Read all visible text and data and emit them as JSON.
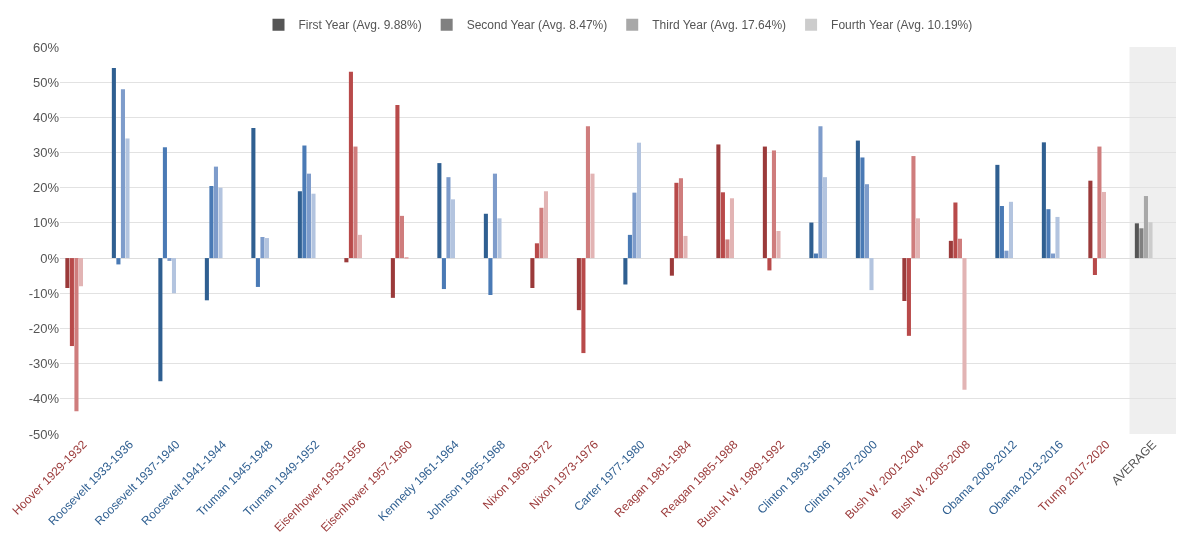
{
  "chart_data": {
    "type": "bar",
    "categories": [
      "Hoover 1929-1932",
      "Roosevelt 1933-1936",
      "Roosevelt 1937-1940",
      "Roosevelt 1941-1944",
      "Truman 1945-1948",
      "Truman 1949-1952",
      "Eisenhower 1953-1956",
      "Eisenhower 1957-1960",
      "Kennedy 1961-1964",
      "Johnson 1965-1968",
      "Nixon 1969-1972",
      "Nixon 1973-1976",
      "Carter 1977-1980",
      "Reagan 1981-1984",
      "Reagan 1985-1988",
      "Bush H.W. 1989-1992",
      "Clinton 1993-1996",
      "Clinton 1997-2000",
      "Bush W. 2001-2004",
      "Bush W. 2005-2008",
      "Obama 2009-2012",
      "Obama 2013-2016",
      "Trump 2017-2020",
      "AVERAGE"
    ],
    "series": [
      {
        "name": "First Year (Avg. 9.88%)",
        "color": "#555555",
        "values": [
          -8.5,
          54,
          -35,
          -12,
          37,
          19,
          -1.2,
          -11.3,
          27,
          12.6,
          -8.5,
          -14.8,
          -7.5,
          -5,
          32.3,
          31.7,
          10.1,
          33.4,
          -12.2,
          4.9,
          26.5,
          32.9,
          22,
          9.88
        ],
        "colors": [
          "#9b3a3a",
          "#2f5f91",
          "#2f5f91",
          "#2f5f91",
          "#2f5f91",
          "#2f5f91",
          "#9b3a3a",
          "#9b3a3a",
          "#2f5f91",
          "#2f5f91",
          "#9b3a3a",
          "#9b3a3a",
          "#2f5f91",
          "#9b3a3a",
          "#9b3a3a",
          "#9b3a3a",
          "#2f5f91",
          "#2f5f91",
          "#9b3a3a",
          "#9b3a3a",
          "#2f5f91",
          "#2f5f91",
          "#9b3a3a",
          "#555555"
        ]
      },
      {
        "name": "Second Year (Avg. 8.47%)",
        "color": "#808080",
        "values": [
          -25,
          -1.8,
          31.5,
          20.5,
          -8.2,
          32,
          53,
          43.5,
          -8.8,
          -10.5,
          4.2,
          -27,
          6.6,
          21.4,
          18.7,
          -3.5,
          1.3,
          28.6,
          -22.1,
          15.8,
          14.8,
          13.9,
          -4.8,
          8.47
        ],
        "colors": [
          "#b84a4a",
          "#4a7ab5",
          "#4a7ab5",
          "#4a7ab5",
          "#4a7ab5",
          "#4a7ab5",
          "#b84a4a",
          "#b84a4a",
          "#4a7ab5",
          "#4a7ab5",
          "#b84a4a",
          "#b84a4a",
          "#4a7ab5",
          "#b84a4a",
          "#b84a4a",
          "#b84a4a",
          "#4a7ab5",
          "#4a7ab5",
          "#b84a4a",
          "#b84a4a",
          "#4a7ab5",
          "#4a7ab5",
          "#b84a4a",
          "#808080"
        ]
      },
      {
        "name": "Third Year (Avg. 17.64%)",
        "color": "#a8a8a8",
        "values": [
          -43.5,
          48,
          -0.8,
          26,
          6,
          24,
          31.7,
          12,
          23,
          24,
          14.3,
          37.5,
          18.6,
          22.7,
          5.3,
          30.6,
          37.5,
          21,
          29,
          5.5,
          2.1,
          1.3,
          31.7,
          17.64
        ],
        "colors": [
          "#cf7d7d",
          "#7e9ccb",
          "#7e9ccb",
          "#7e9ccb",
          "#7e9ccb",
          "#7e9ccb",
          "#cf7d7d",
          "#cf7d7d",
          "#7e9ccb",
          "#7e9ccb",
          "#cf7d7d",
          "#cf7d7d",
          "#7e9ccb",
          "#cf7d7d",
          "#cf7d7d",
          "#cf7d7d",
          "#7e9ccb",
          "#7e9ccb",
          "#cf7d7d",
          "#cf7d7d",
          "#7e9ccb",
          "#7e9ccb",
          "#cf7d7d",
          "#a8a8a8"
        ]
      },
      {
        "name": "Fourth Year (Avg. 10.19%)",
        "color": "#cccccc",
        "values": [
          -8,
          34,
          -10,
          20,
          5.7,
          18.3,
          6.6,
          0.3,
          16.7,
          11.3,
          19,
          24,
          32.8,
          6.3,
          17,
          7.7,
          23,
          -9.1,
          11.3,
          -37.4,
          16,
          11.7,
          18.8,
          10.19
        ],
        "colors": [
          "#e2b4b4",
          "#b3c4df",
          "#b3c4df",
          "#b3c4df",
          "#b3c4df",
          "#b3c4df",
          "#e2b4b4",
          "#e2b4b4",
          "#b3c4df",
          "#b3c4df",
          "#e2b4b4",
          "#e2b4b4",
          "#b3c4df",
          "#e2b4b4",
          "#e2b4b4",
          "#e2b4b4",
          "#b3c4df",
          "#b3c4df",
          "#e2b4b4",
          "#e2b4b4",
          "#b3c4df",
          "#b3c4df",
          "#e2b4b4",
          "#cccccc"
        ]
      }
    ],
    "ylim": [
      -50,
      60
    ],
    "yticks": [
      {
        "value": -50,
        "label": "-50%"
      },
      {
        "value": -40,
        "label": "-40%"
      },
      {
        "value": -30,
        "label": "-30%"
      },
      {
        "value": -20,
        "label": "-20%"
      },
      {
        "value": -10,
        "label": "-10%"
      },
      {
        "value": 0,
        "label": "0%"
      },
      {
        "value": 10,
        "label": "10%"
      },
      {
        "value": 20,
        "label": "20%"
      },
      {
        "value": 30,
        "label": "30%"
      },
      {
        "value": 40,
        "label": "40%"
      },
      {
        "value": 50,
        "label": "50%"
      },
      {
        "value": 60,
        "label": "60%"
      }
    ],
    "bands": [
      {
        "axis": "x",
        "from": "AVERAGE",
        "to": "AVERAGE",
        "color": "#efefef"
      }
    ],
    "grid": "y",
    "legend": "top"
  }
}
